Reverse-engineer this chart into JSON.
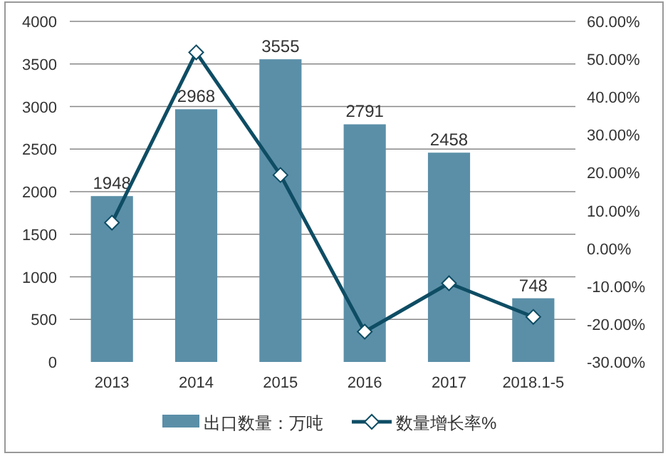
{
  "chart_data": {
    "type": "bar",
    "categories": [
      "2013",
      "2014",
      "2015",
      "2016",
      "2017",
      "2018.1-5"
    ],
    "series": [
      {
        "name": "出口数量：万吨",
        "color": "#5b8fa8",
        "values": [
          1948,
          2968,
          3555,
          2791,
          2458,
          748
        ],
        "value_labels": [
          "1948",
          "2968",
          "3555",
          "2791",
          "2458",
          "748"
        ]
      },
      {
        "name": "数量增长率%",
        "type": "line",
        "axis": "y2",
        "color": "#0e4d64",
        "marker": "diamond",
        "values": [
          6.8,
          51.8,
          19.4,
          -22.0,
          -9.2,
          -18.1
        ]
      }
    ],
    "ylim": [
      0,
      4000
    ],
    "yticks": [
      0,
      500,
      1000,
      1500,
      2000,
      2500,
      3000,
      3500,
      4000
    ],
    "y2lim": [
      -30,
      60
    ],
    "y2ticks": [
      {
        "value": -30,
        "label": "-30.00%"
      },
      {
        "value": -20,
        "label": "-20.00%"
      },
      {
        "value": -10,
        "label": "-10.00%"
      },
      {
        "value": 0,
        "label": "0.00%"
      },
      {
        "value": 10,
        "label": "10.00%"
      },
      {
        "value": 20,
        "label": "20.00%"
      },
      {
        "value": 30,
        "label": "30.00%"
      },
      {
        "value": 40,
        "label": "40.00%"
      },
      {
        "value": 50,
        "label": "50.00%"
      },
      {
        "value": 60,
        "label": "60.00%"
      }
    ],
    "grid": "y",
    "legend": "bottom"
  }
}
